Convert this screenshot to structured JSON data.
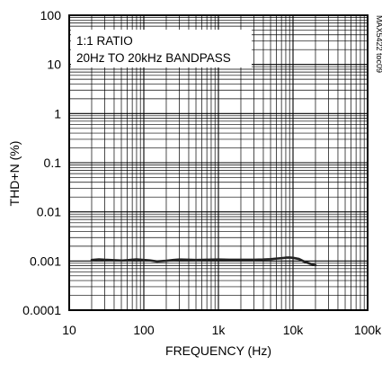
{
  "chart_data": {
    "type": "line",
    "x_scale": "log",
    "y_scale": "log",
    "xlim": [
      10,
      100000
    ],
    "ylim": [
      0.0001,
      100
    ],
    "grid": true,
    "xlabel": "FREQUENCY (Hz)",
    "ylabel": "THD+N (%)",
    "x_ticks": [
      {
        "value": 10,
        "label": "10"
      },
      {
        "value": 100,
        "label": "100"
      },
      {
        "value": 1000,
        "label": "1k"
      },
      {
        "value": 10000,
        "label": "10k"
      },
      {
        "value": 100000,
        "label": "100k"
      }
    ],
    "y_ticks": [
      {
        "value": 100,
        "label": "100"
      },
      {
        "value": 10,
        "label": "10"
      },
      {
        "value": 1,
        "label": "1"
      },
      {
        "value": 0.1,
        "label": "0.1"
      },
      {
        "value": 0.01,
        "label": "0.01"
      },
      {
        "value": 0.001,
        "label": "0.001"
      },
      {
        "value": 0.0001,
        "label": "0.0001"
      }
    ],
    "annotations": [
      "1:1 RATIO",
      "20Hz TO 20kHz BANDPASS"
    ],
    "watermark": "MAX5422 toc09",
    "series": [
      {
        "color": "#222222",
        "x": [
          20,
          25,
          30,
          40,
          50,
          60,
          70,
          80,
          100,
          120,
          150,
          200,
          250,
          300,
          400,
          500,
          700,
          1000,
          1500,
          2000,
          3000,
          4000,
          5000,
          6000,
          7000,
          8000,
          9000,
          10000,
          12000,
          14000,
          17000,
          20000
        ],
        "y": [
          0.00105,
          0.00108,
          0.00106,
          0.00104,
          0.00102,
          0.00104,
          0.00106,
          0.00108,
          0.00105,
          0.00103,
          0.00098,
          0.00101,
          0.00105,
          0.00107,
          0.00106,
          0.00105,
          0.00106,
          0.00107,
          0.00106,
          0.00106,
          0.00106,
          0.00107,
          0.00109,
          0.00112,
          0.00114,
          0.00117,
          0.00118,
          0.00116,
          0.0011,
          0.00098,
          0.00088,
          0.00082
        ]
      }
    ]
  }
}
